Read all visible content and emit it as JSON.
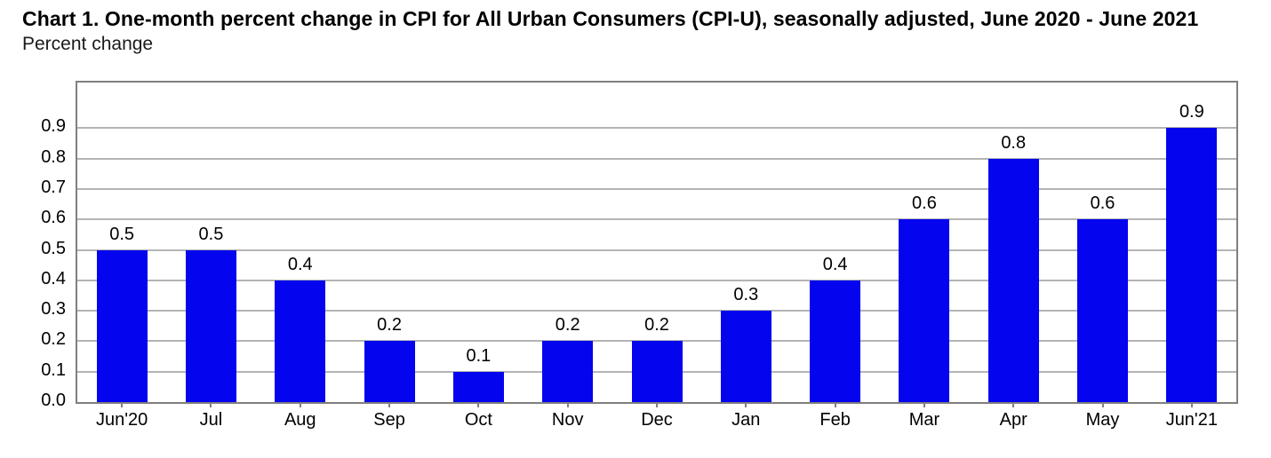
{
  "header": {
    "title": "Chart 1. One-month percent change in CPI for All Urban Consumers (CPI-U), seasonally adjusted, June 2020 - June 2021",
    "subtitle": "Percent change"
  },
  "chart_data": {
    "type": "bar",
    "title": "Chart 1. One-month percent change in CPI for All Urban Consumers (CPI-U), seasonally adjusted, June 2020 - June 2021",
    "ylabel": "Percent change",
    "xlabel": "",
    "categories": [
      "Jun'20",
      "Jul",
      "Aug",
      "Sep",
      "Oct",
      "Nov",
      "Dec",
      "Jan",
      "Feb",
      "Mar",
      "Apr",
      "May",
      "Jun'21"
    ],
    "values": [
      0.5,
      0.5,
      0.4,
      0.2,
      0.1,
      0.2,
      0.2,
      0.3,
      0.4,
      0.6,
      0.8,
      0.6,
      0.9
    ],
    "data_labels": [
      "0.5",
      "0.5",
      "0.4",
      "0.2",
      "0.1",
      "0.2",
      "0.2",
      "0.3",
      "0.4",
      "0.6",
      "0.8",
      "0.6",
      "0.9"
    ],
    "y_ticks": [
      "0.0",
      "0.1",
      "0.2",
      "0.3",
      "0.4",
      "0.5",
      "0.6",
      "0.7",
      "0.8",
      "0.9"
    ],
    "ylim": [
      0,
      1.05
    ],
    "grid": "horizontal",
    "legend": "none",
    "colors": {
      "bar": "#0404ee",
      "gridline": "#b4b4b4",
      "plot_border": "#7f7f7f",
      "text": "#000000",
      "background": "#ffffff"
    }
  }
}
